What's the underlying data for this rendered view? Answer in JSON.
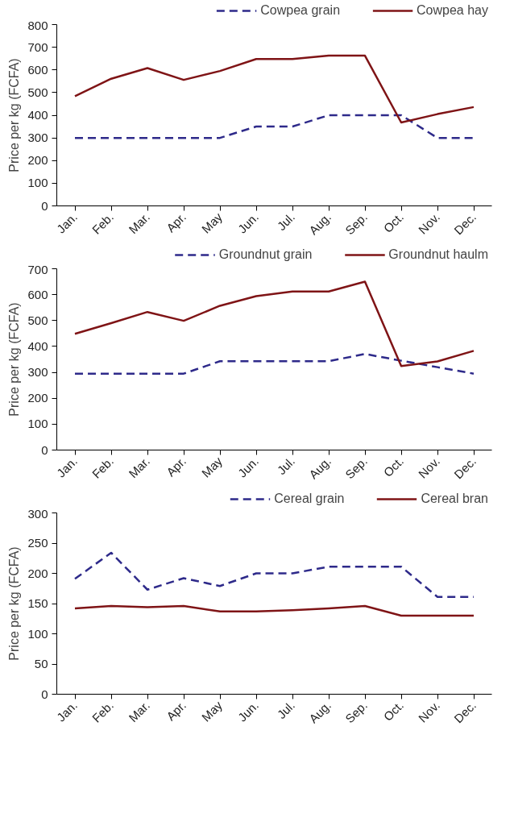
{
  "chart_data": [
    {
      "type": "line",
      "ylabel": "Price per kg (FCFA)",
      "categories": [
        "Jan.",
        "Feb.",
        "Mar.",
        "Apr.",
        "May",
        "Jun.",
        "Jul.",
        "Aug.",
        "Sep.",
        "Oct.",
        "Nov.",
        "Dec."
      ],
      "ylim": [
        0,
        800
      ],
      "yticks": [
        0,
        100,
        200,
        300,
        400,
        500,
        600,
        700,
        800
      ],
      "grid": false,
      "legend": "top right",
      "marker": "none",
      "series": [
        {
          "name": "Cowpea grain",
          "color": "#2e2a8a",
          "line_style": "dashed",
          "values": [
            300,
            300,
            300,
            300,
            300,
            350,
            350,
            400,
            400,
            400,
            300,
            300
          ]
        },
        {
          "name": "Cowpea hay",
          "color": "#7f1416",
          "line_style": "solid",
          "values": [
            484,
            561,
            608,
            556,
            595,
            648,
            648,
            663,
            663,
            368,
            405,
            436
          ]
        }
      ]
    },
    {
      "type": "line",
      "ylabel": "Price per kg (FCFA)",
      "categories": [
        "Jan.",
        "Feb.",
        "Mar.",
        "Apr.",
        "May",
        "Jun.",
        "Jul.",
        "Aug.",
        "Sep.",
        "Oct.",
        "Nov.",
        "Dec."
      ],
      "ylim": [
        0,
        700
      ],
      "yticks": [
        0,
        100,
        200,
        300,
        400,
        500,
        600,
        700
      ],
      "grid": false,
      "legend": "top right",
      "marker": "none",
      "series": [
        {
          "name": "Groundnut grain",
          "color": "#2e2a8a",
          "line_style": "dashed",
          "values": [
            295,
            295,
            295,
            295,
            343,
            343,
            343,
            343,
            371,
            345,
            320,
            295
          ]
        },
        {
          "name": "Groundnut haulm",
          "color": "#7f1416",
          "line_style": "solid",
          "values": [
            449,
            490,
            533,
            499,
            557,
            594,
            612,
            612,
            650,
            324,
            342,
            383
          ]
        }
      ]
    },
    {
      "type": "line",
      "ylabel": "Price per kg (FCFA)",
      "categories": [
        "Jan.",
        "Feb.",
        "Mar.",
        "Apr.",
        "May",
        "Jun.",
        "Jul.",
        "Aug.",
        "Sep.",
        "Oct.",
        "Nov.",
        "Dec."
      ],
      "ylim": [
        0,
        300
      ],
      "yticks": [
        0,
        50,
        100,
        150,
        200,
        250,
        300
      ],
      "grid": false,
      "legend": "top right",
      "marker": "none",
      "series": [
        {
          "name": "Cereal grain",
          "color": "#2e2a8a",
          "line_style": "dashed",
          "values": [
            191,
            234,
            173,
            192,
            179,
            200,
            200,
            211,
            211,
            211,
            161,
            161
          ]
        },
        {
          "name": "Cereal bran",
          "color": "#7f1416",
          "line_style": "solid",
          "values": [
            142,
            146,
            144,
            146,
            137,
            137,
            139,
            142,
            146,
            130,
            130,
            130
          ]
        }
      ]
    }
  ]
}
